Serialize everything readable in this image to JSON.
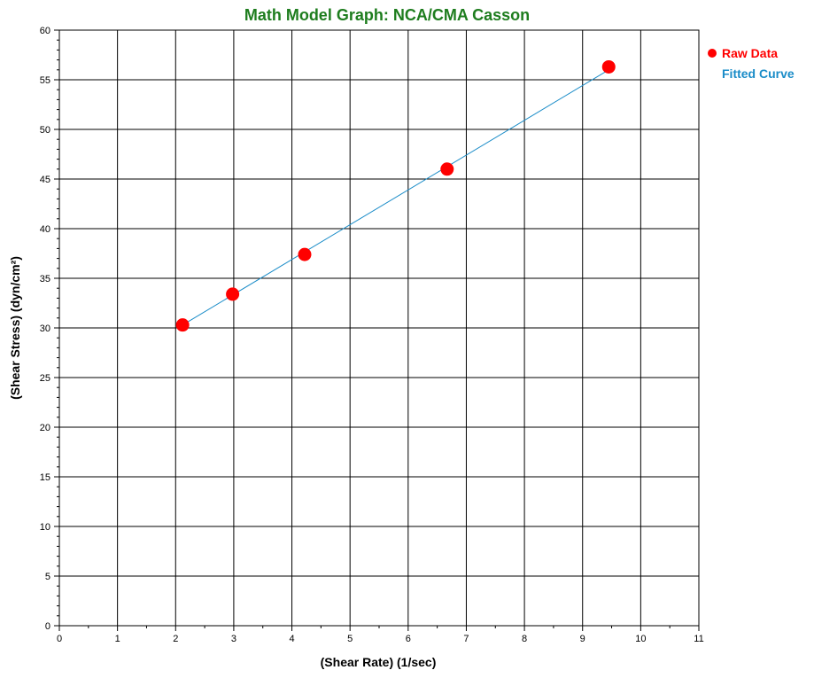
{
  "colors": {
    "title": "#1e7d1e",
    "raw_data": "#ff0000",
    "fitted_curve": "#1a8cc8",
    "grid": "#000000",
    "background": "#ffffff"
  },
  "chart_data": {
    "type": "scatter",
    "title": "Math Model Graph: NCA/CMA Casson",
    "xlabel": "(Shear Rate) (1/sec)",
    "ylabel": "(Shear Stress) (dyn/cm²)",
    "xlim": [
      0,
      11
    ],
    "ylim": [
      0,
      60
    ],
    "x_ticks": [
      "0",
      "1",
      "2",
      "3",
      "4",
      "5",
      "6",
      "7",
      "8",
      "9",
      "10",
      "11"
    ],
    "y_ticks": [
      "0",
      "5",
      "10",
      "15",
      "20",
      "25",
      "30",
      "35",
      "40",
      "45",
      "50",
      "55",
      "60"
    ],
    "grid": true,
    "legend_position": "top-right",
    "series": [
      {
        "name": "Raw Data",
        "kind": "markers",
        "color": "#ff0000",
        "x": [
          2.12,
          2.98,
          4.22,
          6.67,
          9.45
        ],
        "y": [
          30.3,
          33.4,
          37.4,
          46.0,
          56.3
        ]
      },
      {
        "name": "Fitted Curve",
        "kind": "line",
        "color": "#1a8cc8",
        "x": [
          2.12,
          9.45
        ],
        "y": [
          30.3,
          56.0
        ]
      }
    ]
  }
}
